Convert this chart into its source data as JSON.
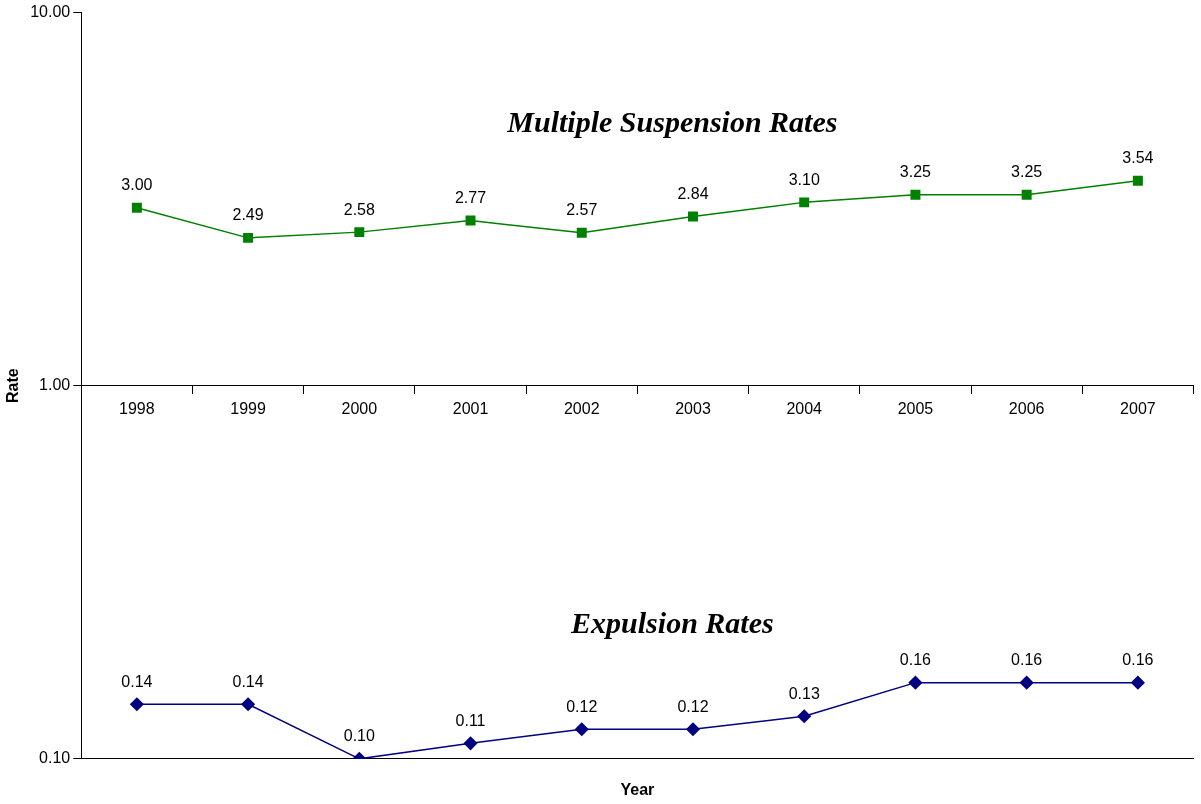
{
  "chart_data": {
    "type": "line",
    "xlabel": "Year",
    "ylabel": "Rate",
    "categories": [
      "1998",
      "1999",
      "2000",
      "2001",
      "2002",
      "2003",
      "2004",
      "2005",
      "2006",
      "2007"
    ],
    "series": [
      {
        "name": "Multiple Suspension Rates",
        "color": "#008000",
        "marker": "square",
        "values": [
          3.0,
          2.49,
          2.58,
          2.77,
          2.57,
          2.84,
          3.1,
          3.25,
          3.25,
          3.54
        ],
        "value_labels": [
          "3.00",
          "2.49",
          "2.58",
          "2.77",
          "2.57",
          "2.84",
          "3.10",
          "3.25",
          "3.25",
          "3.54"
        ]
      },
      {
        "name": "Expulsion Rates",
        "color": "#000080",
        "marker": "diamond",
        "values": [
          0.14,
          0.14,
          0.1,
          0.11,
          0.12,
          0.12,
          0.13,
          0.16,
          0.16,
          0.16
        ],
        "value_labels": [
          "0.14",
          "0.14",
          "0.10",
          "0.11",
          "0.12",
          "0.12",
          "0.13",
          "0.16",
          "0.16",
          "0.16"
        ]
      }
    ],
    "log": true,
    "ylim": [
      0.1,
      10
    ],
    "yticks": [
      {
        "value": 0.1,
        "label": "0.10"
      },
      {
        "value": 1,
        "label": "1.00"
      },
      {
        "value": 10,
        "label": "10.00"
      }
    ],
    "grid": false,
    "legend": false,
    "line_style": "solid"
  }
}
